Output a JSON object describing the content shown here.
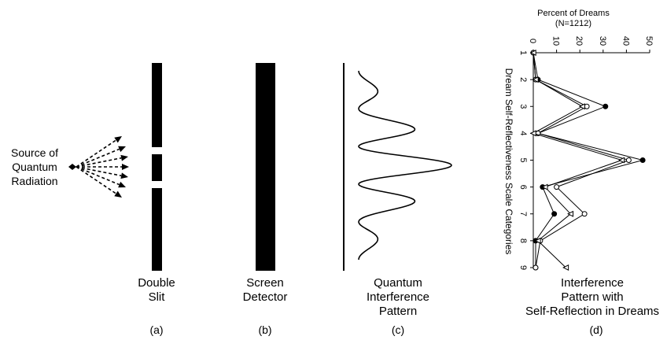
{
  "source_label": [
    "Source of",
    "Quantum",
    "Radiation"
  ],
  "panels": {
    "a": {
      "caption": [
        "Double",
        "Slit"
      ],
      "letter": "(a)"
    },
    "b": {
      "caption": [
        "Screen",
        "Detector"
      ],
      "letter": "(b)"
    },
    "c": {
      "caption": [
        "Quantum",
        "Interference",
        "Pattern"
      ],
      "letter": "(c)"
    },
    "d": {
      "caption": [
        "Interference",
        "Pattern with",
        "Self-Reflection in Dreams"
      ],
      "letter": "(d)"
    }
  },
  "colors": {
    "ink": "#000000",
    "background": "#ffffff"
  },
  "chart_data": {
    "type": "line",
    "orientation": "rotated-90",
    "title": [
      "Percent of Dreams",
      "(N=1212)"
    ],
    "xlabel": "Dream Self-Reflectiveness Scale Categories",
    "ylabel": "",
    "categories": [
      "1",
      "2",
      "3",
      "4",
      "5",
      "6",
      "7",
      "8",
      "9"
    ],
    "ylim": [
      0,
      50
    ],
    "yticks": [
      "0",
      "10",
      "20",
      "30",
      "40",
      "50"
    ],
    "series": [
      {
        "marker": "filled-circle",
        "values": [
          0,
          2,
          31,
          2,
          47,
          4,
          9,
          1,
          1
        ]
      },
      {
        "marker": "open-circle",
        "values": [
          0,
          1,
          23,
          2,
          41,
          10,
          22,
          3,
          1
        ]
      },
      {
        "marker": "open-triangle",
        "values": [
          0,
          1,
          21,
          0,
          38,
          5,
          16,
          2,
          14
        ]
      }
    ]
  }
}
